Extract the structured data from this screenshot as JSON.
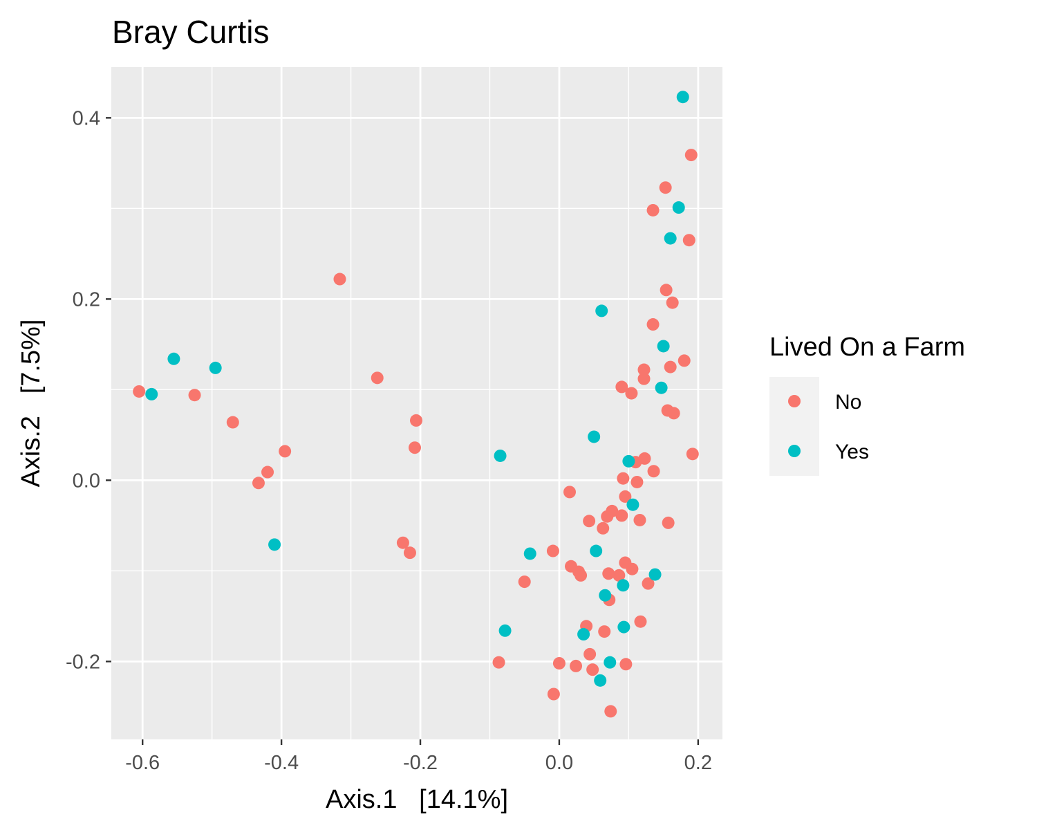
{
  "chart_data": {
    "type": "scatter",
    "title": "Bray Curtis",
    "xlabel": "Axis.1   [14.1%]",
    "ylabel": "Axis.2   [7.5%]",
    "xlim": [
      -0.645,
      0.235
    ],
    "ylim": [
      -0.286,
      0.456
    ],
    "x_ticks": [
      -0.6,
      -0.4,
      -0.2,
      0.0,
      0.2
    ],
    "x_tick_labels": [
      "-0.6",
      "-0.4",
      "-0.2",
      "0.0",
      "0.2"
    ],
    "y_ticks": [
      -0.2,
      0.0,
      0.2,
      0.4
    ],
    "y_tick_labels": [
      "-0.2",
      "0.0",
      "0.2",
      "0.4"
    ],
    "grid": true,
    "background": "#ebebeb",
    "legend": {
      "title": "Lived On a Farm",
      "position": "right"
    },
    "series": [
      {
        "name": "No",
        "color": "#f8766d",
        "points": [
          [
            -0.605,
            0.098
          ],
          [
            -0.525,
            0.094
          ],
          [
            -0.47,
            0.064
          ],
          [
            -0.433,
            -0.003
          ],
          [
            -0.42,
            0.009
          ],
          [
            -0.395,
            0.032
          ],
          [
            -0.316,
            0.222
          ],
          [
            -0.262,
            0.113
          ],
          [
            -0.225,
            -0.069
          ],
          [
            -0.215,
            -0.08
          ],
          [
            -0.206,
            0.066
          ],
          [
            -0.208,
            0.036
          ],
          [
            -0.087,
            -0.201
          ],
          [
            -0.05,
            -0.112
          ],
          [
            -0.009,
            -0.078
          ],
          [
            -0.008,
            -0.236
          ],
          [
            0.0,
            -0.202
          ],
          [
            0.015,
            -0.013
          ],
          [
            0.017,
            -0.095
          ],
          [
            0.024,
            -0.205
          ],
          [
            0.028,
            -0.101
          ],
          [
            0.031,
            -0.105
          ],
          [
            0.039,
            -0.161
          ],
          [
            0.043,
            -0.045
          ],
          [
            0.044,
            -0.192
          ],
          [
            0.048,
            -0.209
          ],
          [
            0.063,
            -0.053
          ],
          [
            0.065,
            -0.167
          ],
          [
            0.069,
            -0.04
          ],
          [
            0.071,
            -0.103
          ],
          [
            0.072,
            -0.132
          ],
          [
            0.074,
            -0.255
          ],
          [
            0.076,
            -0.034
          ],
          [
            0.086,
            -0.105
          ],
          [
            0.09,
            -0.039
          ],
          [
            0.09,
            0.103
          ],
          [
            0.092,
            0.002
          ],
          [
            0.095,
            -0.018
          ],
          [
            0.095,
            -0.091
          ],
          [
            0.096,
            -0.203
          ],
          [
            0.104,
            0.096
          ],
          [
            0.105,
            -0.098
          ],
          [
            0.11,
            0.02
          ],
          [
            0.112,
            -0.002
          ],
          [
            0.116,
            -0.044
          ],
          [
            0.117,
            -0.156
          ],
          [
            0.122,
            0.112
          ],
          [
            0.122,
            0.122
          ],
          [
            0.123,
            0.024
          ],
          [
            0.128,
            -0.114
          ],
          [
            0.135,
            0.298
          ],
          [
            0.135,
            0.172
          ],
          [
            0.136,
            0.01
          ],
          [
            0.153,
            0.323
          ],
          [
            0.154,
            0.21
          ],
          [
            0.156,
            0.077
          ],
          [
            0.157,
            -0.047
          ],
          [
            0.16,
            0.125
          ],
          [
            0.163,
            0.196
          ],
          [
            0.165,
            0.074
          ],
          [
            0.18,
            0.132
          ],
          [
            0.187,
            0.265
          ],
          [
            0.19,
            0.359
          ],
          [
            0.192,
            0.029
          ]
        ]
      },
      {
        "name": "Yes",
        "color": "#00bfc4",
        "points": [
          [
            -0.587,
            0.095
          ],
          [
            -0.555,
            0.134
          ],
          [
            -0.495,
            0.124
          ],
          [
            -0.41,
            -0.071
          ],
          [
            -0.085,
            0.027
          ],
          [
            -0.078,
            -0.166
          ],
          [
            -0.042,
            -0.081
          ],
          [
            0.035,
            -0.17
          ],
          [
            0.05,
            0.048
          ],
          [
            0.053,
            -0.078
          ],
          [
            0.059,
            -0.221
          ],
          [
            0.061,
            0.187
          ],
          [
            0.066,
            -0.127
          ],
          [
            0.073,
            -0.201
          ],
          [
            0.092,
            -0.116
          ],
          [
            0.093,
            -0.162
          ],
          [
            0.1,
            0.021
          ],
          [
            0.106,
            -0.027
          ],
          [
            0.138,
            -0.104
          ],
          [
            0.147,
            0.102
          ],
          [
            0.15,
            0.148
          ],
          [
            0.16,
            0.267
          ],
          [
            0.172,
            0.301
          ],
          [
            0.178,
            0.423
          ]
        ]
      }
    ]
  }
}
